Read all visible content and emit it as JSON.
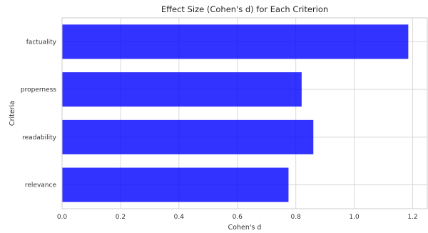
{
  "chart_data": {
    "type": "bar",
    "orientation": "horizontal",
    "title": "Effect Size (Cohen's d) for Each Criterion",
    "xlabel": "Cohen's d",
    "ylabel": "Criteria",
    "categories": [
      "factuality",
      "properness",
      "readability",
      "relevance"
    ],
    "values": [
      1.185,
      0.82,
      0.86,
      0.775
    ],
    "xlim": [
      0,
      1.25
    ],
    "xticks": [
      0.0,
      0.2,
      0.4,
      0.6,
      0.8,
      1.0,
      1.2
    ],
    "xtick_labels": [
      "0.0",
      "0.2",
      "0.4",
      "0.6",
      "0.8",
      "1.0",
      "1.2"
    ],
    "bar_color": "#0000ff",
    "grid": true
  }
}
